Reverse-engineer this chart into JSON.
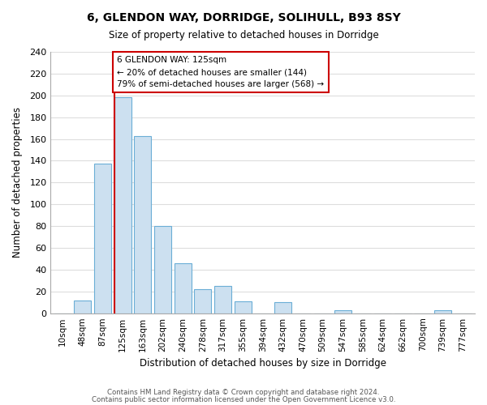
{
  "title": "6, GLENDON WAY, DORRIDGE, SOLIHULL, B93 8SY",
  "subtitle": "Size of property relative to detached houses in Dorridge",
  "xlabel": "Distribution of detached houses by size in Dorridge",
  "ylabel": "Number of detached properties",
  "bin_labels": [
    "10sqm",
    "48sqm",
    "87sqm",
    "125sqm",
    "163sqm",
    "202sqm",
    "240sqm",
    "278sqm",
    "317sqm",
    "355sqm",
    "394sqm",
    "432sqm",
    "470sqm",
    "509sqm",
    "547sqm",
    "585sqm",
    "624sqm",
    "662sqm",
    "700sqm",
    "739sqm",
    "777sqm"
  ],
  "bar_heights": [
    0,
    12,
    137,
    198,
    163,
    80,
    46,
    22,
    25,
    11,
    0,
    10,
    0,
    0,
    3,
    0,
    0,
    0,
    0,
    3,
    0
  ],
  "bar_color": "#cce0f0",
  "bar_edge_color": "#6baed6",
  "vline_x": 2.575,
  "vline_color": "#cc0000",
  "annotation_text": "6 GLENDON WAY: 125sqm\n← 20% of detached houses are smaller (144)\n79% of semi-detached houses are larger (568) →",
  "annotation_box_color": "#ffffff",
  "annotation_box_edge": "#cc0000",
  "ylim": [
    0,
    240
  ],
  "yticks": [
    0,
    20,
    40,
    60,
    80,
    100,
    120,
    140,
    160,
    180,
    200,
    220,
    240
  ],
  "footer_line1": "Contains HM Land Registry data © Crown copyright and database right 2024.",
  "footer_line2": "Contains public sector information licensed under the Open Government Licence v3.0.",
  "bg_color": "#ffffff",
  "grid_color": "#dddddd"
}
